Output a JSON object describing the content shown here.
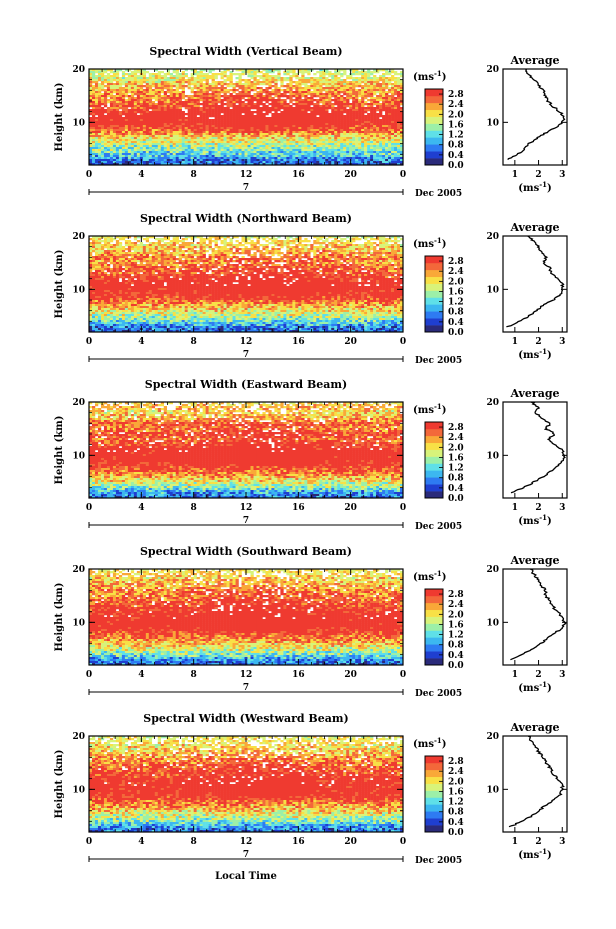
{
  "chart_data": {
    "type": "heatmap",
    "x_label": "Local Time",
    "y_label": "Height (km)",
    "x_ticks": [
      "0",
      "4",
      "8",
      "12",
      "16",
      "20",
      "0"
    ],
    "y_ticks": [
      "20",
      "10"
    ],
    "x_range": [
      0,
      24
    ],
    "y_range": [
      2,
      20
    ],
    "date_marker": "7",
    "date_label": "Dec 2005",
    "colorbar": {
      "unit": "(ms",
      "unit_exp": "-1",
      "unit_close": ")",
      "ticks": [
        "2.8",
        "2.4",
        "2.0",
        "1.6",
        "1.2",
        "0.8",
        "0.4",
        "0.0"
      ],
      "range": [
        0,
        3.0
      ],
      "colors": [
        "#2a2a7a",
        "#1f3fd0",
        "#2e7bf2",
        "#3cb7f0",
        "#5fe0e8",
        "#9cf0a8",
        "#d8f37a",
        "#f8e046",
        "#f9a838",
        "#f3683a",
        "#ef3a30"
      ]
    },
    "profile_title": "Average",
    "profile_unit": "(ms",
    "profile_unit_exp": "-1",
    "profile_unit_close": ")",
    "panels": [
      {
        "title": "Spectral Width (Vertical Beam)",
        "profile_ticks": [
          "1",
          "2",
          "3"
        ],
        "profile_xrange": [
          0.5,
          3.2
        ],
        "profile": {
          "height": [
            3,
            4,
            5,
            6,
            7,
            8,
            9,
            10,
            11,
            12,
            13,
            14,
            15,
            16,
            17,
            18,
            19,
            20
          ],
          "width": [
            0.7,
            1.1,
            1.4,
            1.6,
            1.9,
            2.3,
            2.7,
            3.0,
            3.1,
            2.9,
            2.6,
            2.4,
            2.3,
            2.2,
            2.0,
            1.8,
            1.6,
            1.4
          ]
        }
      },
      {
        "title": "Spectral Width (Northward Beam)",
        "profile_ticks": [
          "1",
          "2",
          "3"
        ],
        "profile_xrange": [
          0.5,
          3.2
        ],
        "profile": {
          "height": [
            3,
            4,
            5,
            6,
            7,
            8,
            9,
            10,
            11,
            12,
            13,
            14,
            15,
            16,
            17,
            18,
            19,
            20
          ],
          "width": [
            0.7,
            1.2,
            1.6,
            1.9,
            2.2,
            2.6,
            2.9,
            3.0,
            3.0,
            2.8,
            2.5,
            2.5,
            2.2,
            2.3,
            2.1,
            2.0,
            1.8,
            1.6
          ]
        }
      },
      {
        "title": "Spectral Width (Eastward Beam)",
        "profile_ticks": [
          "1",
          "2",
          "3"
        ],
        "profile_xrange": [
          0.5,
          3.2
        ],
        "profile": {
          "height": [
            3,
            4,
            5,
            6,
            7,
            8,
            9,
            10,
            11,
            12,
            13,
            14,
            15,
            16,
            17,
            18,
            19,
            20
          ],
          "width": [
            0.8,
            1.4,
            1.8,
            2.2,
            2.5,
            2.8,
            3.0,
            3.1,
            3.0,
            2.7,
            2.4,
            2.7,
            2.3,
            2.5,
            2.1,
            1.9,
            2.0,
            1.7
          ]
        }
      },
      {
        "title": "Spectral Width (Southward Beam)",
        "profile_ticks": [
          "1",
          "2",
          "3"
        ],
        "profile_xrange": [
          0.5,
          3.2
        ],
        "profile": {
          "height": [
            3,
            4,
            5,
            6,
            7,
            8,
            9,
            10,
            11,
            12,
            13,
            14,
            15,
            16,
            17,
            18,
            19,
            20
          ],
          "width": [
            0.8,
            1.3,
            1.7,
            2.1,
            2.4,
            2.7,
            3.0,
            3.1,
            3.0,
            2.8,
            2.6,
            2.5,
            2.3,
            2.3,
            2.1,
            2.0,
            1.8,
            1.7
          ]
        }
      },
      {
        "title": "Spectral Width (Westward Beam)",
        "profile_ticks": [
          "1",
          "2",
          "3"
        ],
        "profile_xrange": [
          0.5,
          3.2
        ],
        "profile": {
          "height": [
            3,
            4,
            5,
            6,
            7,
            8,
            9,
            10,
            11,
            12,
            13,
            14,
            15,
            16,
            17,
            18,
            19,
            20
          ],
          "width": [
            0.8,
            1.3,
            1.7,
            2.0,
            2.3,
            2.6,
            2.9,
            3.0,
            3.0,
            2.8,
            2.6,
            2.5,
            2.3,
            2.2,
            2.0,
            1.9,
            1.7,
            1.6
          ]
        }
      }
    ]
  }
}
